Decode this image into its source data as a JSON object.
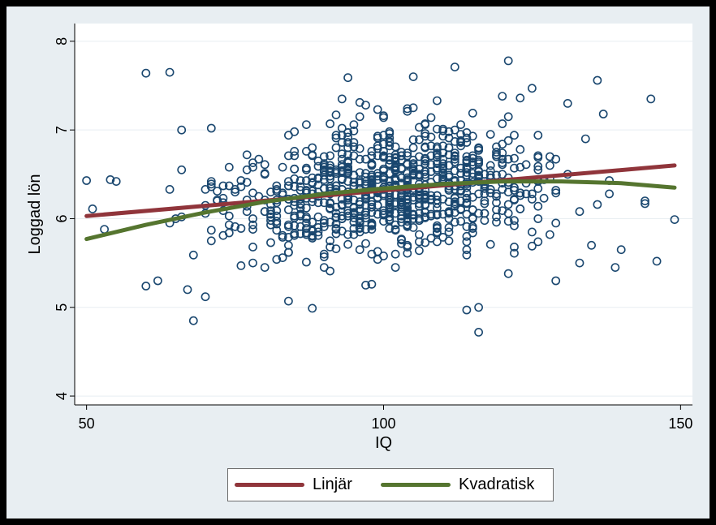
{
  "chart_data": {
    "type": "scatter",
    "title": "",
    "xlabel": "IQ",
    "ylabel": "Loggad lön",
    "xlim": [
      48,
      152
    ],
    "ylim": [
      3.9,
      8.2
    ],
    "xticks": [
      50,
      100,
      150
    ],
    "yticks": [
      4,
      5,
      6,
      7,
      8
    ],
    "grid": "horizontal",
    "legend_position": "bottom",
    "marker": "hollow-circle",
    "colors": {
      "points": "#1a476f",
      "linear": "#90353b",
      "quadratic": "#55752f",
      "plot_background": "#ffffff",
      "outer_background": "#e8eef2",
      "grid": "#e8eef2"
    },
    "scatter_summary": {
      "n_points": 935,
      "x_range": [
        50,
        149
      ],
      "y_range": [
        4.7,
        7.8
      ],
      "x_center": 101,
      "y_center": 6.33
    },
    "outlier_points": [
      [
        60,
        7.64
      ],
      [
        64,
        7.65
      ],
      [
        121,
        7.78
      ],
      [
        112,
        7.71
      ],
      [
        94,
        7.59
      ],
      [
        105,
        7.6
      ],
      [
        136,
        7.56
      ],
      [
        145,
        7.35
      ],
      [
        66,
        7.0
      ],
      [
        71,
        7.02
      ],
      [
        116,
        4.72
      ],
      [
        116,
        5.0
      ],
      [
        114,
        4.97
      ],
      [
        68,
        4.85
      ],
      [
        88,
        4.99
      ],
      [
        84,
        5.07
      ],
      [
        97,
        5.25
      ],
      [
        78,
        5.5
      ],
      [
        50,
        6.43
      ],
      [
        51,
        6.11
      ],
      [
        53,
        5.88
      ],
      [
        54,
        6.44
      ],
      [
        55,
        6.42
      ],
      [
        60,
        5.24
      ],
      [
        62,
        5.3
      ],
      [
        149,
        5.99
      ],
      [
        146,
        5.52
      ],
      [
        140,
        5.65
      ],
      [
        139,
        5.45
      ],
      [
        144,
        6.2
      ],
      [
        138,
        6.43
      ],
      [
        135,
        5.7
      ],
      [
        133,
        5.5
      ],
      [
        129,
        5.3
      ],
      [
        137,
        7.18
      ],
      [
        134,
        6.9
      ],
      [
        131,
        7.3
      ],
      [
        125,
        7.47
      ],
      [
        67,
        5.2
      ],
      [
        70,
        5.12
      ]
    ],
    "series": [
      {
        "name": "Linjär",
        "type": "line",
        "x": [
          50,
          149
        ],
        "y": [
          6.03,
          6.6
        ]
      },
      {
        "name": "Kvadratisk",
        "type": "line",
        "x": [
          50,
          60,
          70,
          80,
          90,
          100,
          110,
          120,
          130,
          140,
          149
        ],
        "y": [
          5.77,
          5.93,
          6.07,
          6.19,
          6.28,
          6.34,
          6.39,
          6.42,
          6.42,
          6.4,
          6.35
        ]
      }
    ]
  }
}
